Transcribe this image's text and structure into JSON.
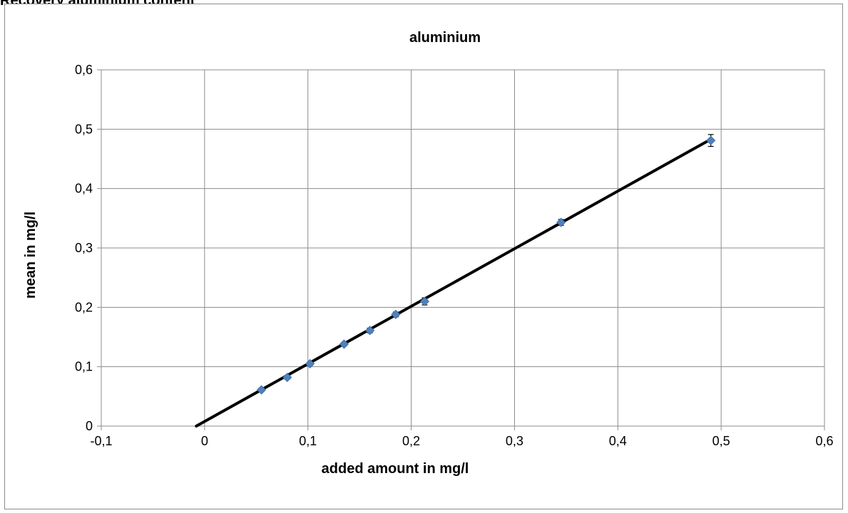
{
  "page": {
    "clipped_title": "Recovery aluminium content"
  },
  "chart_data": {
    "type": "scatter",
    "title": "aluminium",
    "xlabel": "added amount in mg/l",
    "ylabel": "mean in mg/l",
    "xlim": [
      -0.1,
      0.6
    ],
    "ylim": [
      0,
      0.6
    ],
    "x_ticks": [
      "-0,1",
      "0",
      "0,1",
      "0,2",
      "0,3",
      "0,4",
      "0,5",
      "0,6"
    ],
    "y_ticks": [
      "0",
      "0,1",
      "0,2",
      "0,3",
      "0,4",
      "0,5",
      "0,6"
    ],
    "grid": true,
    "legend": "none",
    "series": [
      {
        "points": [
          {
            "x": 0.055,
            "y": 0.061,
            "err": 0.003
          },
          {
            "x": 0.08,
            "y": 0.082,
            "err": 0.003
          },
          {
            "x": 0.102,
            "y": 0.105,
            "err": 0.003
          },
          {
            "x": 0.135,
            "y": 0.138,
            "err": 0.003
          },
          {
            "x": 0.16,
            "y": 0.161,
            "err": 0.004
          },
          {
            "x": 0.185,
            "y": 0.188,
            "err": 0.004
          },
          {
            "x": 0.213,
            "y": 0.21,
            "err": 0.006
          },
          {
            "x": 0.345,
            "y": 0.343,
            "err": 0.005
          },
          {
            "x": 0.49,
            "y": 0.481,
            "err": 0.01
          }
        ]
      }
    ],
    "trendline": {
      "x": [
        -0.008,
        0.49
      ],
      "y": [
        0.0,
        0.483
      ]
    },
    "colors": {
      "marker": "#4f81bd",
      "trendline": "#000000",
      "grid": "#8c8c8c",
      "error_bar": "#000000"
    }
  }
}
